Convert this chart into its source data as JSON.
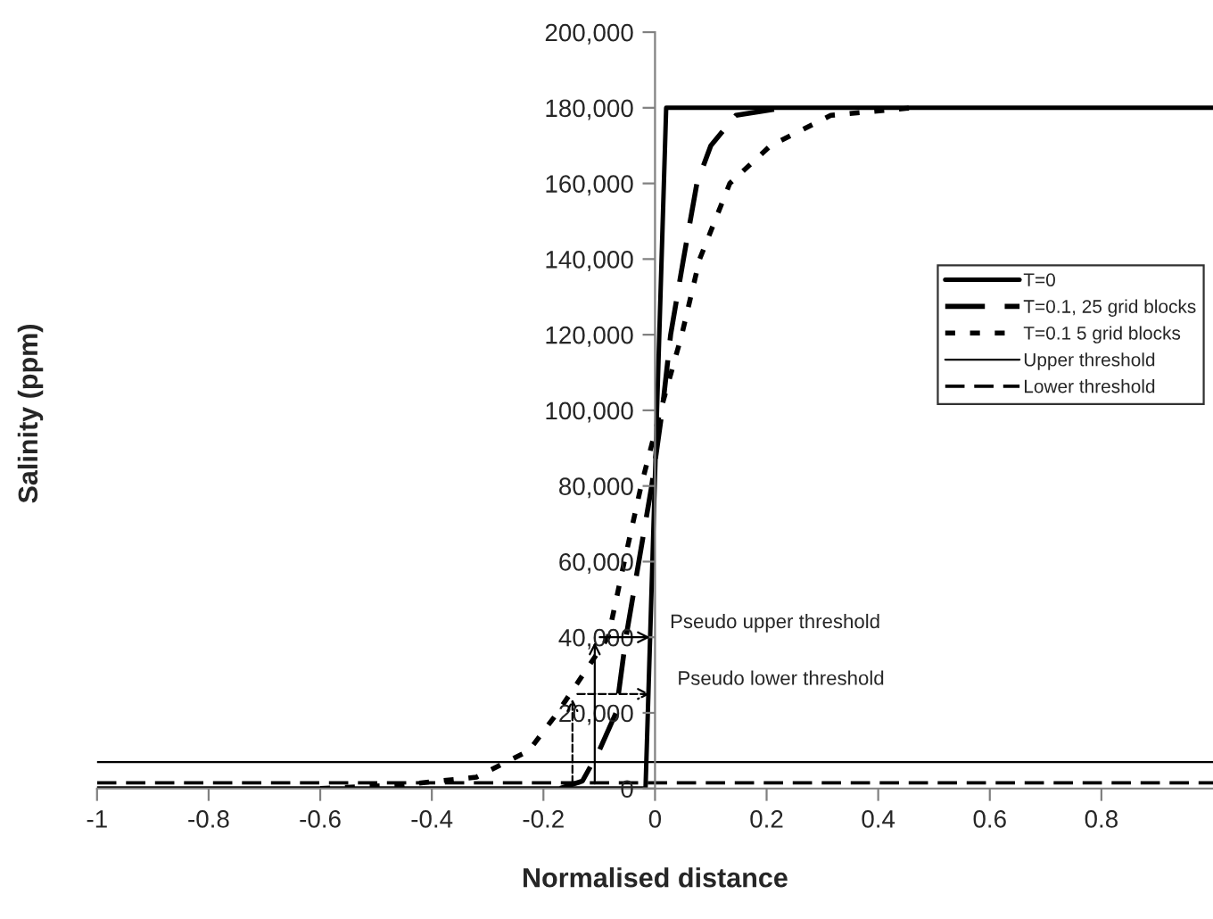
{
  "chart_data": {
    "type": "line",
    "xlabel": "Normalised distance",
    "ylabel": "Salinity (ppm)",
    "xlim": [
      -1,
      1
    ],
    "xticks": [
      -1,
      -0.8,
      -0.6,
      -0.4,
      -0.2,
      0,
      0.2,
      0.4,
      0.6,
      0.8
    ],
    "ylim": [
      0,
      200000
    ],
    "yticks": [
      {
        "value": 0,
        "label": "0"
      },
      {
        "value": 20000,
        "label": "20,000"
      },
      {
        "value": 40000,
        "label": "40,000"
      },
      {
        "value": 60000,
        "label": "60,000"
      },
      {
        "value": 80000,
        "label": "80,000"
      },
      {
        "value": 100000,
        "label": "100,000"
      },
      {
        "value": 120000,
        "label": "120,000"
      },
      {
        "value": 140000,
        "label": "140,000"
      },
      {
        "value": 160000,
        "label": "160,000"
      },
      {
        "value": 180000,
        "label": "180,000"
      },
      {
        "value": 200000,
        "label": "200,000"
      }
    ],
    "grid": false,
    "legend": "right",
    "marker": "none",
    "series": [
      {
        "name": "T=0",
        "color": "#000000",
        "line_style": "solid",
        "x": [
          -1,
          -0.017,
          0.02,
          1
        ],
        "values": [
          0,
          0,
          180000,
          180000
        ]
      },
      {
        "name": "T=0.1, 25 grid blocks",
        "color": "#000000",
        "line_style": "dashed",
        "x": [
          -0.17,
          -0.13,
          -0.1,
          -0.07,
          -0.052,
          -0.029,
          -0.006,
          0.013,
          0.028,
          0.051,
          0.075,
          0.1,
          0.145,
          0.23
        ],
        "values": [
          0,
          2000,
          10000,
          20000,
          40000,
          60000,
          80000,
          100000,
          120000,
          140000,
          160000,
          170000,
          178000,
          180000
        ]
      },
      {
        "name": "T=0.1 5 grid blocks",
        "color": "#000000",
        "line_style": "dotted",
        "x": [
          -0.6,
          -0.45,
          -0.32,
          -0.226,
          -0.175,
          -0.084,
          -0.055,
          -0.025,
          0.01,
          0.048,
          0.08,
          0.134,
          0.207,
          0.315,
          0.46
        ],
        "values": [
          0,
          1000,
          3000,
          10000,
          20000,
          40000,
          60000,
          80000,
          100000,
          120000,
          140000,
          160000,
          170000,
          178000,
          180000
        ]
      }
    ],
    "ref_lines": [
      {
        "axis": "y",
        "value": 7000,
        "label": "Upper threshold",
        "color": "#000000",
        "line_style": "solid"
      },
      {
        "axis": "y",
        "value": 1500,
        "label": "Lower threshold",
        "color": "#000000",
        "line_style": "dashed"
      }
    ],
    "annotations": [
      {
        "text": "Pseudo upper threshold",
        "x": 0,
        "y": 40000
      },
      {
        "text": "Pseudo lower threshold",
        "x": 0,
        "y": 25000
      }
    ]
  }
}
